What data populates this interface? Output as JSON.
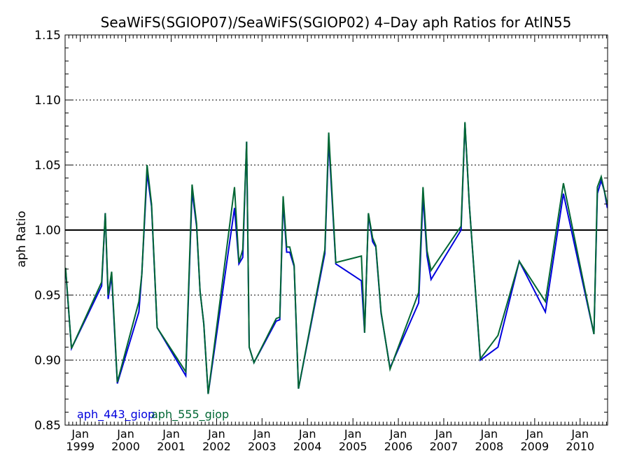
{
  "chart_data": {
    "type": "line",
    "title": "SeaWiFS(SGIOP07)/SeaWiFS(SGIOP02) 4–Day aph Ratios for AtlN55",
    "ylabel": "aph Ratio",
    "xlabel": "",
    "ylim": [
      0.85,
      1.15
    ],
    "xlim": [
      "1998-09-01",
      "2010-08-10"
    ],
    "yticks": [
      "0.85",
      "0.90",
      "0.95",
      "1.00",
      "1.05",
      "1.10",
      "1.15"
    ],
    "grid_y": [
      0.9,
      0.95,
      1.05,
      1.1
    ],
    "reference_line": 1.0,
    "xticks": [
      {
        "month": "Jan",
        "year": "1999",
        "date": "1999-01-01"
      },
      {
        "month": "Jan",
        "year": "2000",
        "date": "2000-01-01"
      },
      {
        "month": "Jan",
        "year": "2001",
        "date": "2001-01-01"
      },
      {
        "month": "Jan",
        "year": "2002",
        "date": "2002-01-01"
      },
      {
        "month": "Jan",
        "year": "2003",
        "date": "2003-01-01"
      },
      {
        "month": "Jan",
        "year": "2004",
        "date": "2004-01-01"
      },
      {
        "month": "Jan",
        "year": "2005",
        "date": "2005-01-01"
      },
      {
        "month": "Jan",
        "year": "2006",
        "date": "2006-01-01"
      },
      {
        "month": "Jan",
        "year": "2007",
        "date": "2007-01-01"
      },
      {
        "month": "Jan",
        "year": "2008",
        "date": "2008-01-01"
      },
      {
        "month": "Jan",
        "year": "2009",
        "date": "2009-01-01"
      },
      {
        "month": "Jan",
        "year": "2010",
        "date": "2010-01-01"
      }
    ],
    "legend_position": "bottom-left",
    "series": [
      {
        "name": "aph_443_giop",
        "color": "#0000dd",
        "points": [
          [
            "1998-09-05",
            0.97
          ],
          [
            "1998-10-22",
            0.909
          ],
          [
            "1999-06-22",
            0.957
          ],
          [
            "1999-07-21",
            1.013
          ],
          [
            "1999-08-13",
            0.947
          ],
          [
            "1999-09-10",
            0.965
          ],
          [
            "1999-10-26",
            0.882
          ],
          [
            "2000-04-16",
            0.937
          ],
          [
            "2000-05-10",
            0.966
          ],
          [
            "2000-06-21",
            1.044
          ],
          [
            "2000-07-27",
            1.018
          ],
          [
            "2000-09-10",
            0.925
          ],
          [
            "2001-04-28",
            0.888
          ],
          [
            "2001-06-18",
            1.03
          ],
          [
            "2001-07-24",
            1.003
          ],
          [
            "2001-08-21",
            0.953
          ],
          [
            "2001-09-20",
            0.928
          ],
          [
            "2001-10-25",
            0.874
          ],
          [
            "2002-05-25",
            1.017
          ],
          [
            "2002-06-29",
            0.974
          ],
          [
            "2002-07-30",
            0.979
          ],
          [
            "2002-08-30",
            1.068
          ],
          [
            "2002-09-20",
            0.91
          ],
          [
            "2002-10-28",
            0.898
          ],
          [
            "2003-04-25",
            0.93
          ],
          [
            "2003-05-24",
            0.931
          ],
          [
            "2003-06-20",
            1.022
          ],
          [
            "2003-07-18",
            0.983
          ],
          [
            "2003-08-12",
            0.983
          ],
          [
            "2003-09-16",
            0.972
          ],
          [
            "2003-10-21",
            0.878
          ],
          [
            "2004-05-20",
            0.982
          ],
          [
            "2004-06-20",
            1.069
          ],
          [
            "2004-08-16",
            0.974
          ],
          [
            "2005-03-10",
            0.961
          ],
          [
            "2005-04-05",
            0.921
          ],
          [
            "2005-05-05",
            1.012
          ],
          [
            "2005-06-08",
            0.991
          ],
          [
            "2005-07-04",
            0.987
          ],
          [
            "2005-08-15",
            0.936
          ],
          [
            "2005-10-26",
            0.894
          ],
          [
            "2006-06-13",
            0.944
          ],
          [
            "2006-07-18",
            1.026
          ],
          [
            "2006-08-20",
            0.98
          ],
          [
            "2006-09-21",
            0.962
          ],
          [
            "2007-05-20",
            1.0
          ],
          [
            "2007-06-20",
            1.082
          ],
          [
            "2007-07-25",
            1.02
          ],
          [
            "2007-10-22",
            0.9
          ],
          [
            "2008-03-12",
            0.91
          ],
          [
            "2008-08-30",
            0.976
          ],
          [
            "2009-03-28",
            0.937
          ],
          [
            "2009-08-20",
            1.028
          ],
          [
            "2010-04-22",
            0.92
          ],
          [
            "2010-05-20",
            1.028
          ],
          [
            "2010-06-20",
            1.038
          ],
          [
            "2010-07-15",
            1.03
          ],
          [
            "2010-08-08",
            1.017
          ]
        ]
      },
      {
        "name": "aph_555_giop",
        "color": "#006633",
        "points": [
          [
            "1998-09-05",
            0.971
          ],
          [
            "1998-10-22",
            0.909
          ],
          [
            "1999-06-22",
            0.96
          ],
          [
            "1999-07-21",
            1.013
          ],
          [
            "1999-08-13",
            0.95
          ],
          [
            "1999-09-10",
            0.968
          ],
          [
            "1999-10-26",
            0.883
          ],
          [
            "2000-04-16",
            0.945
          ],
          [
            "2000-05-10",
            0.966
          ],
          [
            "2000-06-21",
            1.05
          ],
          [
            "2000-07-27",
            1.02
          ],
          [
            "2000-09-10",
            0.925
          ],
          [
            "2001-04-28",
            0.891
          ],
          [
            "2001-06-18",
            1.035
          ],
          [
            "2001-07-24",
            1.005
          ],
          [
            "2001-08-21",
            0.953
          ],
          [
            "2001-09-20",
            0.928
          ],
          [
            "2001-10-25",
            0.874
          ],
          [
            "2002-05-25",
            1.033
          ],
          [
            "2002-06-29",
            0.975
          ],
          [
            "2002-07-30",
            0.985
          ],
          [
            "2002-08-30",
            1.068
          ],
          [
            "2002-09-20",
            0.91
          ],
          [
            "2002-10-28",
            0.898
          ],
          [
            "2003-04-25",
            0.932
          ],
          [
            "2003-05-24",
            0.933
          ],
          [
            "2003-06-20",
            1.026
          ],
          [
            "2003-07-18",
            0.987
          ],
          [
            "2003-08-12",
            0.987
          ],
          [
            "2003-09-16",
            0.973
          ],
          [
            "2003-10-21",
            0.878
          ],
          [
            "2004-05-20",
            0.985
          ],
          [
            "2004-06-20",
            1.075
          ],
          [
            "2004-08-16",
            0.975
          ],
          [
            "2005-03-10",
            0.98
          ],
          [
            "2005-04-05",
            0.921
          ],
          [
            "2005-05-05",
            1.013
          ],
          [
            "2005-06-08",
            0.994
          ],
          [
            "2005-07-04",
            0.988
          ],
          [
            "2005-08-15",
            0.937
          ],
          [
            "2005-10-26",
            0.893
          ],
          [
            "2006-06-13",
            0.952
          ],
          [
            "2006-07-18",
            1.033
          ],
          [
            "2006-08-20",
            0.984
          ],
          [
            "2006-09-21",
            0.969
          ],
          [
            "2007-05-20",
            1.003
          ],
          [
            "2007-06-20",
            1.083
          ],
          [
            "2007-07-25",
            1.02
          ],
          [
            "2007-10-22",
            0.901
          ],
          [
            "2008-03-12",
            0.919
          ],
          [
            "2008-08-30",
            0.976
          ],
          [
            "2009-03-28",
            0.945
          ],
          [
            "2009-08-20",
            1.036
          ],
          [
            "2010-04-22",
            0.92
          ],
          [
            "2010-05-20",
            1.033
          ],
          [
            "2010-06-20",
            1.041
          ],
          [
            "2010-07-15",
            1.03
          ],
          [
            "2010-08-08",
            1.02
          ]
        ]
      }
    ]
  }
}
